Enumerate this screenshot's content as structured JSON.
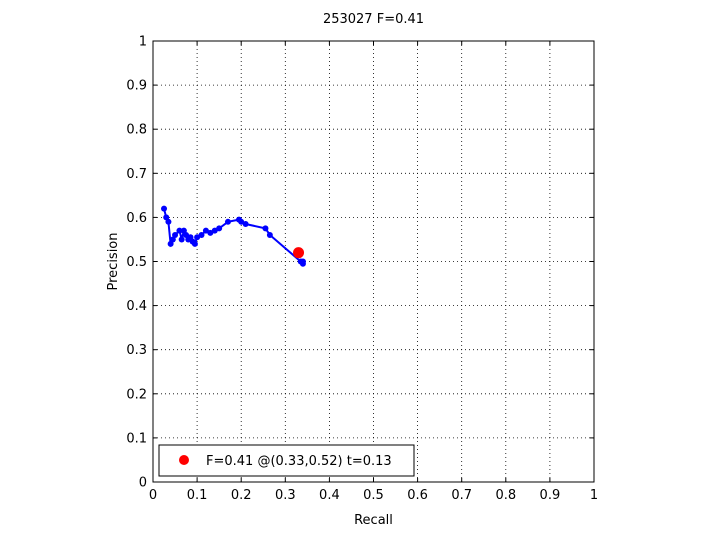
{
  "chart_data": {
    "type": "line",
    "title": "253027 F=0.41",
    "xlabel": "Recall",
    "ylabel": "Precision",
    "xlim": [
      0,
      1
    ],
    "ylim": [
      0,
      1
    ],
    "xticks": [
      "0",
      "0.1",
      "0.2",
      "0.3",
      "0.4",
      "0.5",
      "0.6",
      "0.7",
      "0.8",
      "0.9",
      "1"
    ],
    "yticks": [
      "0",
      "0.1",
      "0.2",
      "0.3",
      "0.4",
      "0.5",
      "0.6",
      "0.7",
      "0.8",
      "0.9",
      "1"
    ],
    "grid": true,
    "legend_position": "bottom-left",
    "series": [
      {
        "color": "#0000ff",
        "x": [
          0.025,
          0.03,
          0.035,
          0.04,
          0.045,
          0.05,
          0.06,
          0.065,
          0.07,
          0.075,
          0.08,
          0.085,
          0.09,
          0.095,
          0.1,
          0.11,
          0.12,
          0.13,
          0.14,
          0.15,
          0.17,
          0.195,
          0.2,
          0.21,
          0.255,
          0.265,
          0.335,
          0.34,
          0.34
        ],
        "y": [
          0.62,
          0.6,
          0.59,
          0.54,
          0.55,
          0.56,
          0.57,
          0.55,
          0.57,
          0.56,
          0.55,
          0.555,
          0.545,
          0.54,
          0.555,
          0.56,
          0.57,
          0.565,
          0.57,
          0.575,
          0.59,
          0.595,
          0.59,
          0.585,
          0.575,
          0.56,
          0.5,
          0.495,
          0.5
        ]
      }
    ],
    "highlight": {
      "x": 0.33,
      "y": 0.52,
      "color": "#ff0000",
      "legend_label": "F=0.41 @(0.33,0.52) t=0.13"
    }
  }
}
